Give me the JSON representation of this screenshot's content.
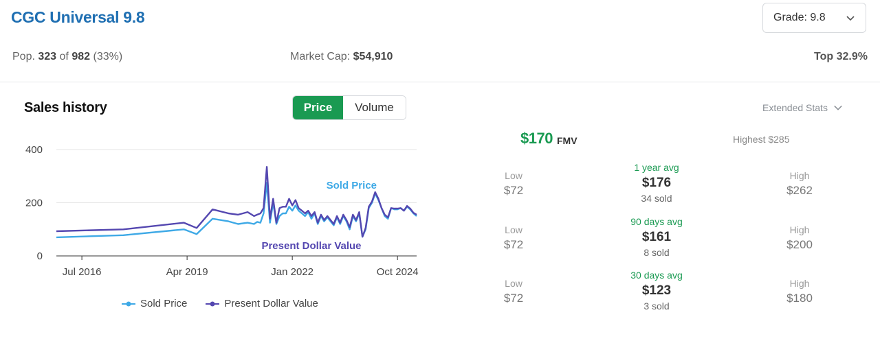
{
  "header": {
    "title": "CGC Universal 9.8",
    "grade_label": "Grade: 9.8"
  },
  "stats": {
    "pop_prefix": "Pop.",
    "pop_value": "323",
    "pop_of": "of",
    "pop_total": "982",
    "pop_pct": "(33%)",
    "market_cap_label": "Market Cap:",
    "market_cap_value": "$54,910",
    "top_pct": "Top 32.9%"
  },
  "sales": {
    "title": "Sales history",
    "tabs": [
      "Price",
      "Volume"
    ],
    "active_tab": "Price",
    "extended_stats": "Extended Stats"
  },
  "fmv": {
    "value": "$170",
    "label": "FMV",
    "highest": "Highest $285"
  },
  "periods": [
    {
      "low_label": "Low",
      "low": "$72",
      "period": "1 year avg",
      "avg": "$176",
      "sold": "34 sold",
      "high_label": "High",
      "high": "$262"
    },
    {
      "low_label": "Low",
      "low": "$72",
      "period": "90 days avg",
      "avg": "$161",
      "sold": "8 sold",
      "high_label": "High",
      "high": "$200"
    },
    {
      "low_label": "Low",
      "low": "$72",
      "period": "30 days avg",
      "avg": "$123",
      "sold": "3 sold",
      "high_label": "High",
      "high": "$180"
    }
  ],
  "colors": {
    "title_blue": "#1f6fb2",
    "green": "#1a9a52",
    "sold_price": "#3ea9e6",
    "present_dollar": "#5447b0"
  },
  "chart_data": {
    "type": "line",
    "yticks": [
      0,
      200,
      400
    ],
    "ylim": [
      0,
      400
    ],
    "xticks": [
      "Jul 2016",
      "Apr 2019",
      "Jan 2022",
      "Oct 2024"
    ],
    "x_domain": [
      "2015-11",
      "2025-04"
    ],
    "legend": [
      "Sold Price",
      "Present Dollar Value"
    ],
    "legend_position": "bottom",
    "annotations": [
      "Sold Price",
      "Present Dollar Value"
    ],
    "grid": true,
    "series": [
      {
        "name": "Sold Price",
        "color": "#3ea9e6",
        "x": [
          "2015-11",
          "2017-08",
          "2019-03",
          "2019-07",
          "2019-12",
          "2020-05",
          "2020-08",
          "2020-11",
          "2021-01",
          "2021-02",
          "2021-03",
          "2021-04",
          "2021-05",
          "2021-06",
          "2021-07",
          "2021-08",
          "2021-09",
          "2021-10",
          "2021-11",
          "2021-12",
          "2022-01",
          "2022-02",
          "2022-03",
          "2022-04",
          "2022-05",
          "2022-06",
          "2022-07",
          "2022-08",
          "2022-09",
          "2022-10",
          "2022-11",
          "2022-12",
          "2023-01",
          "2023-02",
          "2023-03",
          "2023-04",
          "2023-05",
          "2023-06",
          "2023-07",
          "2023-08",
          "2023-09",
          "2023-10",
          "2023-11",
          "2023-12",
          "2024-01",
          "2024-02",
          "2024-03",
          "2024-04",
          "2024-05",
          "2024-06",
          "2024-07",
          "2024-08",
          "2024-09",
          "2024-10",
          "2024-11",
          "2024-12",
          "2025-01",
          "2025-02",
          "2025-03",
          "2025-04"
        ],
        "y": [
          70,
          78,
          100,
          82,
          140,
          130,
          120,
          125,
          120,
          128,
          125,
          160,
          275,
          125,
          200,
          120,
          150,
          160,
          160,
          185,
          170,
          190,
          170,
          160,
          150,
          165,
          140,
          160,
          120,
          150,
          130,
          145,
          130,
          115,
          145,
          120,
          150,
          130,
          100,
          150,
          130,
          160,
          72,
          100,
          180,
          200,
          235,
          210,
          180,
          150,
          140,
          180,
          175,
          175,
          180,
          170,
          185,
          175,
          160,
          150
        ]
      },
      {
        "name": "Present Dollar Value",
        "color": "#5447b0",
        "x": [
          "2015-11",
          "2017-08",
          "2019-03",
          "2019-07",
          "2019-12",
          "2020-05",
          "2020-08",
          "2020-11",
          "2021-01",
          "2021-02",
          "2021-03",
          "2021-04",
          "2021-05",
          "2021-06",
          "2021-07",
          "2021-08",
          "2021-09",
          "2021-10",
          "2021-11",
          "2021-12",
          "2022-01",
          "2022-02",
          "2022-03",
          "2022-04",
          "2022-05",
          "2022-06",
          "2022-07",
          "2022-08",
          "2022-09",
          "2022-10",
          "2022-11",
          "2022-12",
          "2023-01",
          "2023-02",
          "2023-03",
          "2023-04",
          "2023-05",
          "2023-06",
          "2023-07",
          "2023-08",
          "2023-09",
          "2023-10",
          "2023-11",
          "2023-12",
          "2024-01",
          "2024-02",
          "2024-03",
          "2024-04",
          "2024-05",
          "2024-06",
          "2024-07",
          "2024-08",
          "2024-09",
          "2024-10",
          "2024-11",
          "2024-12",
          "2025-01",
          "2025-02",
          "2025-03",
          "2025-04"
        ],
        "y": [
          93,
          100,
          125,
          105,
          175,
          160,
          155,
          165,
          150,
          155,
          160,
          180,
          335,
          140,
          215,
          125,
          180,
          185,
          185,
          215,
          190,
          210,
          180,
          170,
          160,
          170,
          150,
          165,
          125,
          155,
          135,
          150,
          135,
          120,
          150,
          125,
          155,
          135,
          108,
          155,
          135,
          165,
          72,
          105,
          185,
          205,
          240,
          215,
          180,
          155,
          145,
          180,
          178,
          178,
          180,
          170,
          188,
          178,
          162,
          155
        ]
      }
    ]
  }
}
